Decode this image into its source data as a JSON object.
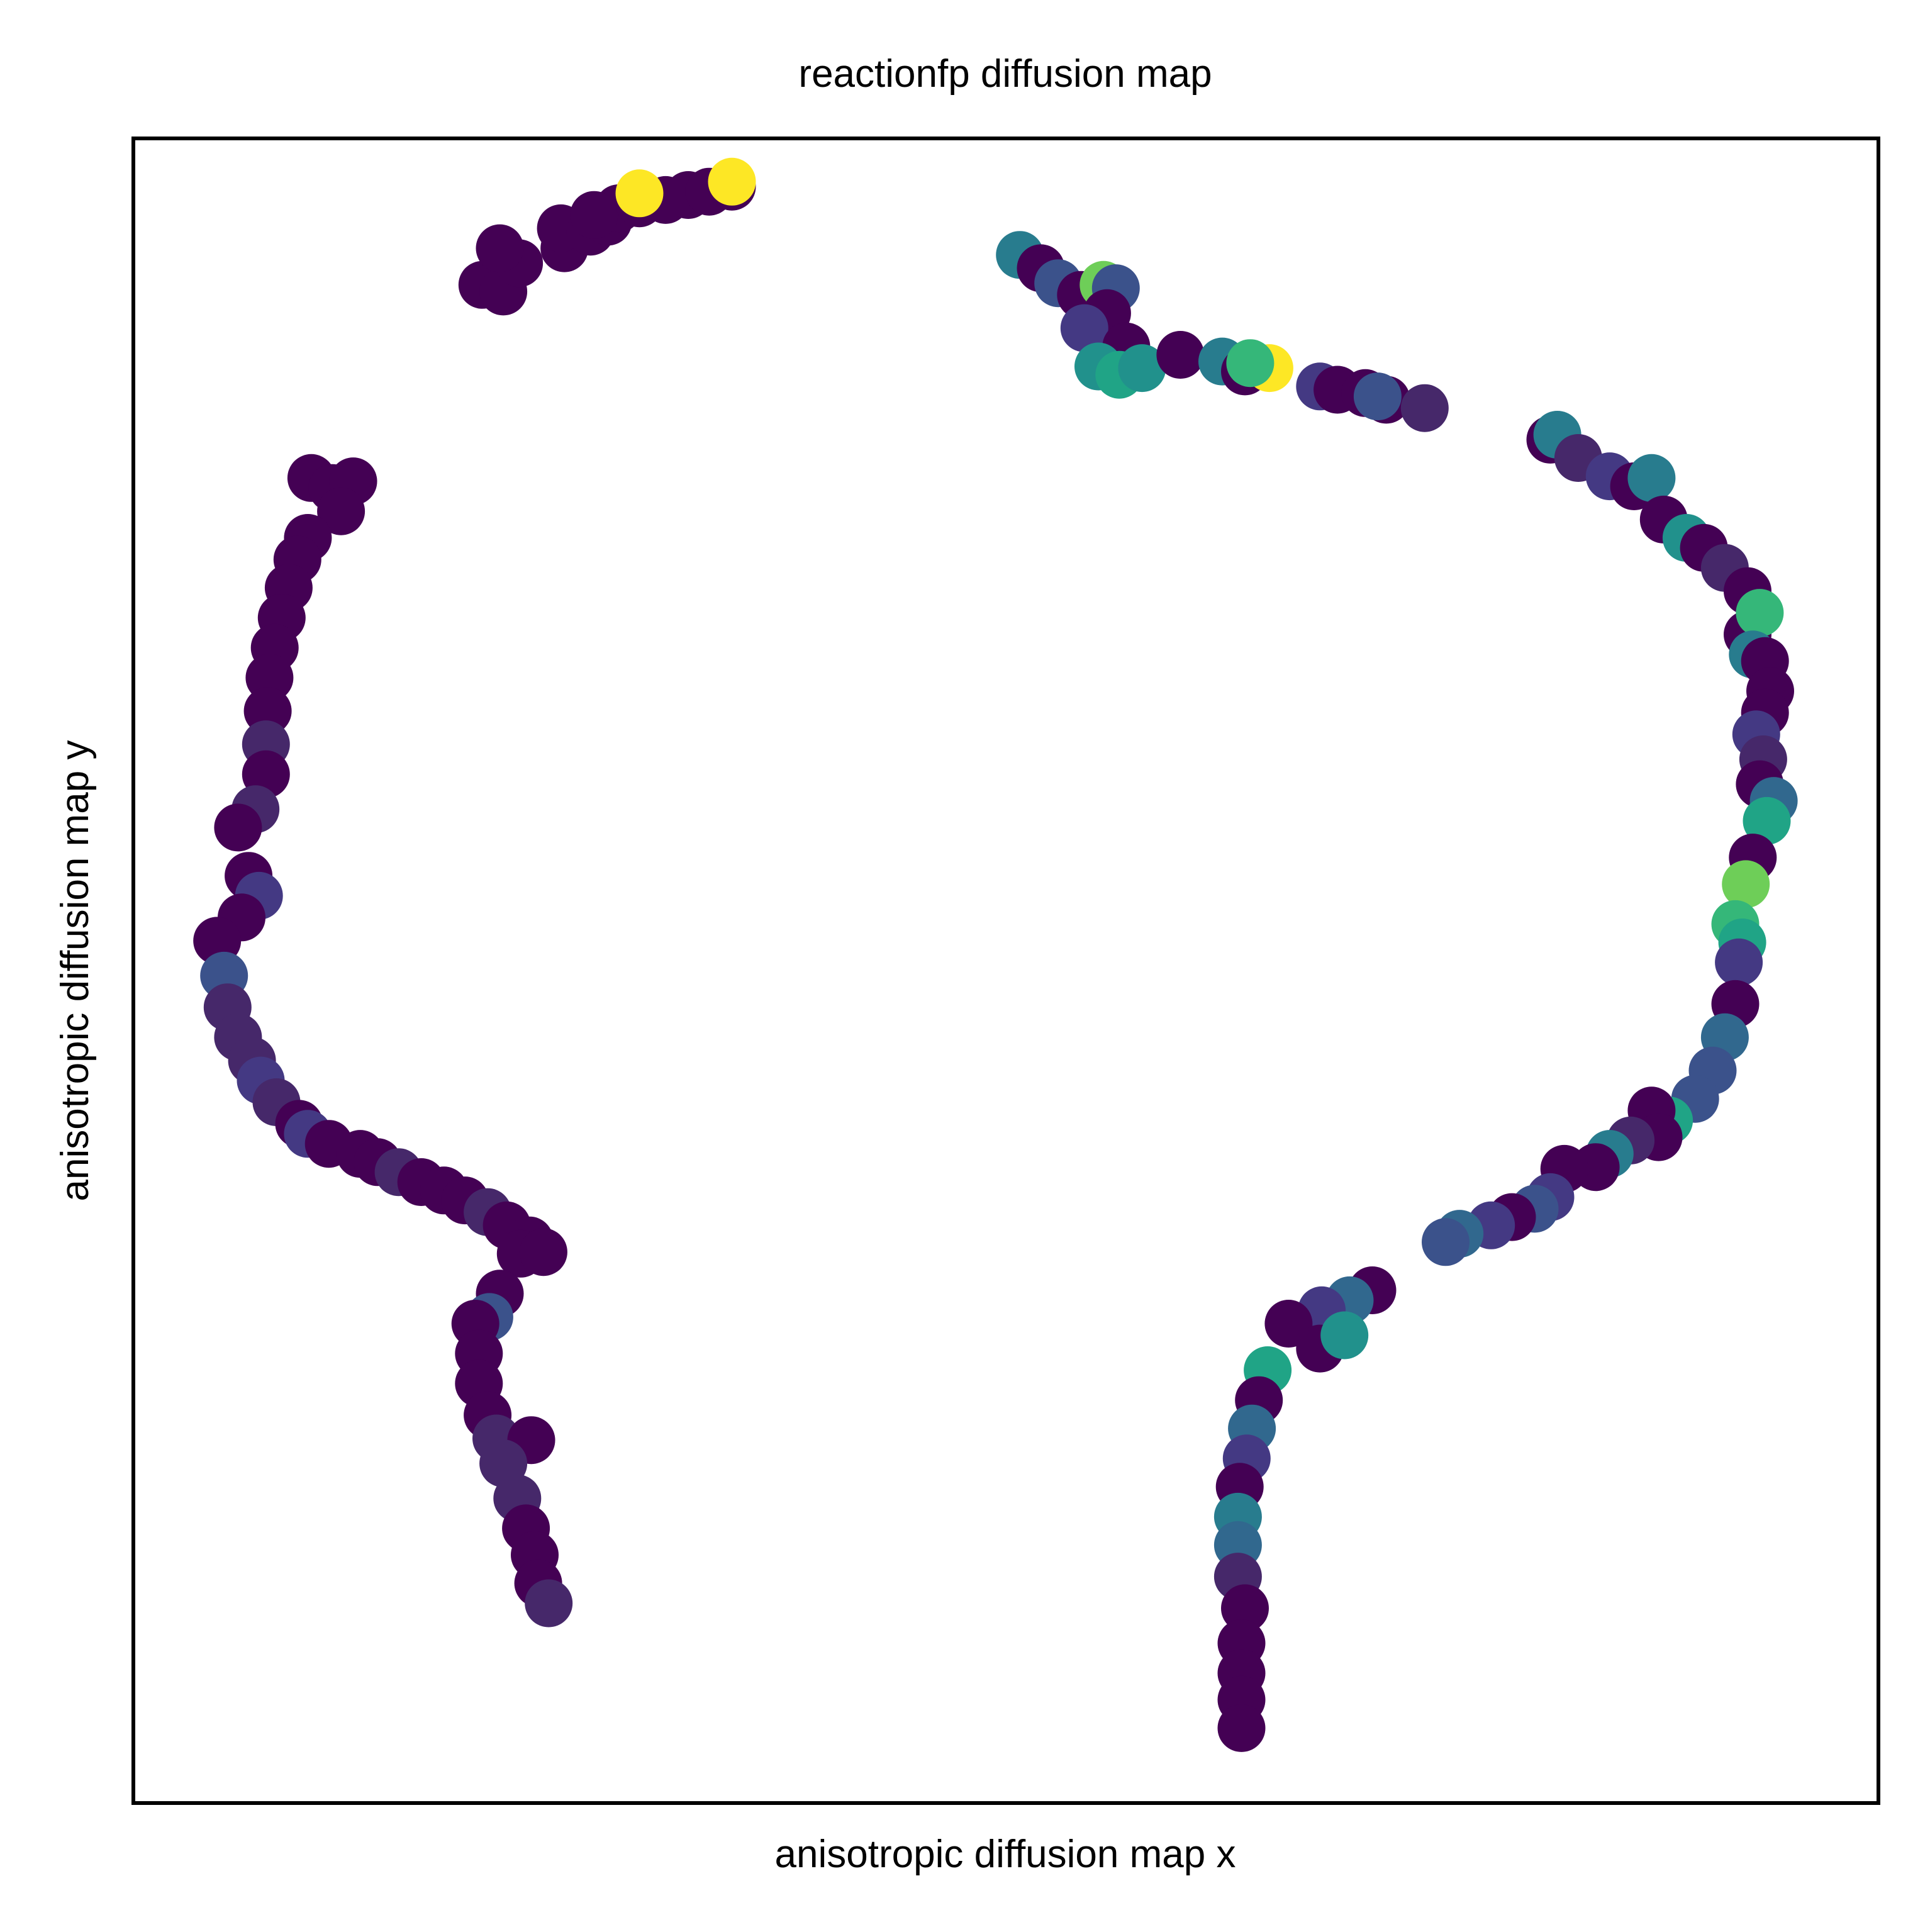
{
  "chart_data": {
    "type": "scatter",
    "title": "reactionfp diffusion map",
    "xlabel": "anisotropic diffusion map x",
    "ylabel": "anisotropic diffusion map y",
    "xlim": [
      0,
      1
    ],
    "ylim": [
      0,
      1
    ],
    "ticks": false,
    "grid": false,
    "legend": "none",
    "colormap": "viridis",
    "point_radius": 38,
    "palette": {
      "v0": "#440154",
      "v1": "#46286a",
      "v2": "#443983",
      "v3": "#3b528b",
      "v4": "#31688e",
      "v5": "#287c8e",
      "v6": "#21918c",
      "v7": "#20a486",
      "v8": "#35b779",
      "v9": "#6ece58",
      "v10": "#b5de2b",
      "v11": "#fde725"
    },
    "points": [
      {
        "x": 0.2,
        "y": 0.912,
        "c": "v0"
      },
      {
        "x": 0.212,
        "y": 0.908,
        "c": "v0"
      },
      {
        "x": 0.221,
        "y": 0.925,
        "c": "v0"
      },
      {
        "x": 0.21,
        "y": 0.934,
        "c": "v0"
      },
      {
        "x": 0.247,
        "y": 0.934,
        "c": "v0"
      },
      {
        "x": 0.245,
        "y": 0.946,
        "c": "v0"
      },
      {
        "x": 0.262,
        "y": 0.944,
        "c": "v0"
      },
      {
        "x": 0.272,
        "y": 0.95,
        "c": "v0"
      },
      {
        "x": 0.278,
        "y": 0.958,
        "c": "v0"
      },
      {
        "x": 0.264,
        "y": 0.954,
        "c": "v0"
      },
      {
        "x": 0.29,
        "y": 0.961,
        "c": "v0"
      },
      {
        "x": 0.305,
        "y": 0.963,
        "c": "v0"
      },
      {
        "x": 0.318,
        "y": 0.966,
        "c": "v0"
      },
      {
        "x": 0.33,
        "y": 0.968,
        "c": "v0"
      },
      {
        "x": 0.343,
        "y": 0.971,
        "c": "v0"
      },
      {
        "x": 0.29,
        "y": 0.967,
        "c": "v11"
      },
      {
        "x": 0.343,
        "y": 0.974,
        "c": "v11"
      },
      {
        "x": 0.102,
        "y": 0.796,
        "c": "v0"
      },
      {
        "x": 0.114,
        "y": 0.79,
        "c": "v0"
      },
      {
        "x": 0.126,
        "y": 0.794,
        "c": "v0"
      },
      {
        "x": 0.119,
        "y": 0.776,
        "c": "v0"
      },
      {
        "x": 0.1,
        "y": 0.76,
        "c": "v0"
      },
      {
        "x": 0.094,
        "y": 0.747,
        "c": "v0"
      },
      {
        "x": 0.089,
        "y": 0.73,
        "c": "v0"
      },
      {
        "x": 0.085,
        "y": 0.712,
        "c": "v0"
      },
      {
        "x": 0.081,
        "y": 0.694,
        "c": "v0"
      },
      {
        "x": 0.078,
        "y": 0.676,
        "c": "v0"
      },
      {
        "x": 0.077,
        "y": 0.656,
        "c": "v0"
      },
      {
        "x": 0.076,
        "y": 0.636,
        "c": "v1"
      },
      {
        "x": 0.076,
        "y": 0.618,
        "c": "v0"
      },
      {
        "x": 0.07,
        "y": 0.597,
        "c": "v1"
      },
      {
        "x": 0.06,
        "y": 0.586,
        "c": "v0"
      },
      {
        "x": 0.066,
        "y": 0.557,
        "c": "v0"
      },
      {
        "x": 0.072,
        "y": 0.545,
        "c": "v2"
      },
      {
        "x": 0.062,
        "y": 0.532,
        "c": "v0"
      },
      {
        "x": 0.048,
        "y": 0.518,
        "c": "v0"
      },
      {
        "x": 0.052,
        "y": 0.497,
        "c": "v3"
      },
      {
        "x": 0.054,
        "y": 0.478,
        "c": "v1"
      },
      {
        "x": 0.06,
        "y": 0.46,
        "c": "v1"
      },
      {
        "x": 0.068,
        "y": 0.446,
        "c": "v1"
      },
      {
        "x": 0.073,
        "y": 0.434,
        "c": "v2"
      },
      {
        "x": 0.082,
        "y": 0.421,
        "c": "v1"
      },
      {
        "x": 0.095,
        "y": 0.408,
        "c": "v0"
      },
      {
        "x": 0.1,
        "y": 0.402,
        "c": "v2"
      },
      {
        "x": 0.112,
        "y": 0.396,
        "c": "v0"
      },
      {
        "x": 0.13,
        "y": 0.39,
        "c": "v0"
      },
      {
        "x": 0.14,
        "y": 0.385,
        "c": "v0"
      },
      {
        "x": 0.152,
        "y": 0.379,
        "c": "v1"
      },
      {
        "x": 0.165,
        "y": 0.373,
        "c": "v0"
      },
      {
        "x": 0.178,
        "y": 0.368,
        "c": "v0"
      },
      {
        "x": 0.19,
        "y": 0.362,
        "c": "v0"
      },
      {
        "x": 0.203,
        "y": 0.355,
        "c": "v1"
      },
      {
        "x": 0.214,
        "y": 0.347,
        "c": "v0"
      },
      {
        "x": 0.227,
        "y": 0.338,
        "c": "v0"
      },
      {
        "x": 0.222,
        "y": 0.33,
        "c": "v0"
      },
      {
        "x": 0.235,
        "y": 0.331,
        "c": "v0"
      },
      {
        "x": 0.21,
        "y": 0.306,
        "c": "v0"
      },
      {
        "x": 0.204,
        "y": 0.292,
        "c": "v3"
      },
      {
        "x": 0.196,
        "y": 0.288,
        "c": "v0"
      },
      {
        "x": 0.198,
        "y": 0.27,
        "c": "v0"
      },
      {
        "x": 0.198,
        "y": 0.252,
        "c": "v0"
      },
      {
        "x": 0.203,
        "y": 0.233,
        "c": "v0"
      },
      {
        "x": 0.208,
        "y": 0.219,
        "c": "v1"
      },
      {
        "x": 0.228,
        "y": 0.218,
        "c": "v0"
      },
      {
        "x": 0.212,
        "y": 0.204,
        "c": "v1"
      },
      {
        "x": 0.22,
        "y": 0.183,
        "c": "v1"
      },
      {
        "x": 0.225,
        "y": 0.165,
        "c": "v0"
      },
      {
        "x": 0.23,
        "y": 0.149,
        "c": "v0"
      },
      {
        "x": 0.232,
        "y": 0.132,
        "c": "v0"
      },
      {
        "x": 0.238,
        "y": 0.12,
        "c": "v1"
      },
      {
        "x": 0.508,
        "y": 0.93,
        "c": "v5"
      },
      {
        "x": 0.52,
        "y": 0.922,
        "c": "v0"
      },
      {
        "x": 0.53,
        "y": 0.913,
        "c": "v3"
      },
      {
        "x": 0.543,
        "y": 0.906,
        "c": "v0"
      },
      {
        "x": 0.556,
        "y": 0.912,
        "c": "v9"
      },
      {
        "x": 0.563,
        "y": 0.91,
        "c": "v3"
      },
      {
        "x": 0.558,
        "y": 0.895,
        "c": "v0"
      },
      {
        "x": 0.545,
        "y": 0.886,
        "c": "v2"
      },
      {
        "x": 0.569,
        "y": 0.875,
        "c": "v0"
      },
      {
        "x": 0.553,
        "y": 0.863,
        "c": "v6"
      },
      {
        "x": 0.565,
        "y": 0.858,
        "c": "v7"
      },
      {
        "x": 0.578,
        "y": 0.862,
        "c": "v6"
      },
      {
        "x": 0.6,
        "y": 0.87,
        "c": "v0"
      },
      {
        "x": 0.624,
        "y": 0.866,
        "c": "v5"
      },
      {
        "x": 0.637,
        "y": 0.86,
        "c": "v0"
      },
      {
        "x": 0.651,
        "y": 0.862,
        "c": "v11"
      },
      {
        "x": 0.64,
        "y": 0.865,
        "c": "v8"
      },
      {
        "x": 0.68,
        "y": 0.851,
        "c": "v2"
      },
      {
        "x": 0.69,
        "y": 0.849,
        "c": "v0"
      },
      {
        "x": 0.706,
        "y": 0.847,
        "c": "v0"
      },
      {
        "x": 0.718,
        "y": 0.843,
        "c": "v0"
      },
      {
        "x": 0.74,
        "y": 0.838,
        "c": "v1"
      },
      {
        "x": 0.713,
        "y": 0.845,
        "c": "v3"
      },
      {
        "x": 0.812,
        "y": 0.819,
        "c": "v0"
      },
      {
        "x": 0.816,
        "y": 0.822,
        "c": "v5"
      },
      {
        "x": 0.828,
        "y": 0.808,
        "c": "v1"
      },
      {
        "x": 0.846,
        "y": 0.797,
        "c": "v2"
      },
      {
        "x": 0.86,
        "y": 0.791,
        "c": "v0"
      },
      {
        "x": 0.87,
        "y": 0.796,
        "c": "v5"
      },
      {
        "x": 0.877,
        "y": 0.771,
        "c": "v0"
      },
      {
        "x": 0.89,
        "y": 0.76,
        "c": "v6"
      },
      {
        "x": 0.9,
        "y": 0.754,
        "c": "v0"
      },
      {
        "x": 0.912,
        "y": 0.742,
        "c": "v1"
      },
      {
        "x": 0.925,
        "y": 0.728,
        "c": "v0"
      },
      {
        "x": 0.925,
        "y": 0.702,
        "c": "v0"
      },
      {
        "x": 0.932,
        "y": 0.715,
        "c": "v8"
      },
      {
        "x": 0.928,
        "y": 0.69,
        "c": "v5"
      },
      {
        "x": 0.935,
        "y": 0.686,
        "c": "v0"
      },
      {
        "x": 0.938,
        "y": 0.668,
        "c": "v0"
      },
      {
        "x": 0.935,
        "y": 0.655,
        "c": "v0"
      },
      {
        "x": 0.93,
        "y": 0.642,
        "c": "v2"
      },
      {
        "x": 0.934,
        "y": 0.627,
        "c": "v1"
      },
      {
        "x": 0.932,
        "y": 0.612,
        "c": "v0"
      },
      {
        "x": 0.94,
        "y": 0.602,
        "c": "v4"
      },
      {
        "x": 0.936,
        "y": 0.59,
        "c": "v7"
      },
      {
        "x": 0.928,
        "y": 0.568,
        "c": "v0"
      },
      {
        "x": 0.924,
        "y": 0.552,
        "c": "v9"
      },
      {
        "x": 0.918,
        "y": 0.528,
        "c": "v8"
      },
      {
        "x": 0.922,
        "y": 0.517,
        "c": "v7"
      },
      {
        "x": 0.92,
        "y": 0.505,
        "c": "v2"
      },
      {
        "x": 0.918,
        "y": 0.48,
        "c": "v0"
      },
      {
        "x": 0.912,
        "y": 0.46,
        "c": "v4"
      },
      {
        "x": 0.905,
        "y": 0.44,
        "c": "v3"
      },
      {
        "x": 0.895,
        "y": 0.423,
        "c": "v3"
      },
      {
        "x": 0.88,
        "y": 0.41,
        "c": "v7"
      },
      {
        "x": 0.87,
        "y": 0.416,
        "c": "v0"
      },
      {
        "x": 0.874,
        "y": 0.4,
        "c": "v0"
      },
      {
        "x": 0.858,
        "y": 0.398,
        "c": "v1"
      },
      {
        "x": 0.846,
        "y": 0.39,
        "c": "v5"
      },
      {
        "x": 0.838,
        "y": 0.382,
        "c": "v0"
      },
      {
        "x": 0.82,
        "y": 0.381,
        "c": "v0"
      },
      {
        "x": 0.812,
        "y": 0.364,
        "c": "v2"
      },
      {
        "x": 0.803,
        "y": 0.357,
        "c": "v3"
      },
      {
        "x": 0.79,
        "y": 0.352,
        "c": "v0"
      },
      {
        "x": 0.778,
        "y": 0.347,
        "c": "v2"
      },
      {
        "x": 0.76,
        "y": 0.342,
        "c": "v4"
      },
      {
        "x": 0.752,
        "y": 0.337,
        "c": "v3"
      },
      {
        "x": 0.71,
        "y": 0.308,
        "c": "v0"
      },
      {
        "x": 0.697,
        "y": 0.302,
        "c": "v4"
      },
      {
        "x": 0.681,
        "y": 0.296,
        "c": "v2"
      },
      {
        "x": 0.662,
        "y": 0.288,
        "c": "v0"
      },
      {
        "x": 0.68,
        "y": 0.273,
        "c": "v0"
      },
      {
        "x": 0.694,
        "y": 0.281,
        "c": "v6"
      },
      {
        "x": 0.65,
        "y": 0.26,
        "c": "v7"
      },
      {
        "x": 0.645,
        "y": 0.242,
        "c": "v0"
      },
      {
        "x": 0.641,
        "y": 0.225,
        "c": "v4"
      },
      {
        "x": 0.638,
        "y": 0.207,
        "c": "v2"
      },
      {
        "x": 0.634,
        "y": 0.19,
        "c": "v0"
      },
      {
        "x": 0.633,
        "y": 0.172,
        "c": "v5"
      },
      {
        "x": 0.633,
        "y": 0.155,
        "c": "v4"
      },
      {
        "x": 0.633,
        "y": 0.136,
        "c": "v1"
      },
      {
        "x": 0.637,
        "y": 0.117,
        "c": "v0"
      },
      {
        "x": 0.635,
        "y": 0.096,
        "c": "v0"
      },
      {
        "x": 0.635,
        "y": 0.078,
        "c": "v0"
      },
      {
        "x": 0.635,
        "y": 0.062,
        "c": "v0"
      },
      {
        "x": 0.635,
        "y": 0.045,
        "c": "v0"
      }
    ]
  }
}
